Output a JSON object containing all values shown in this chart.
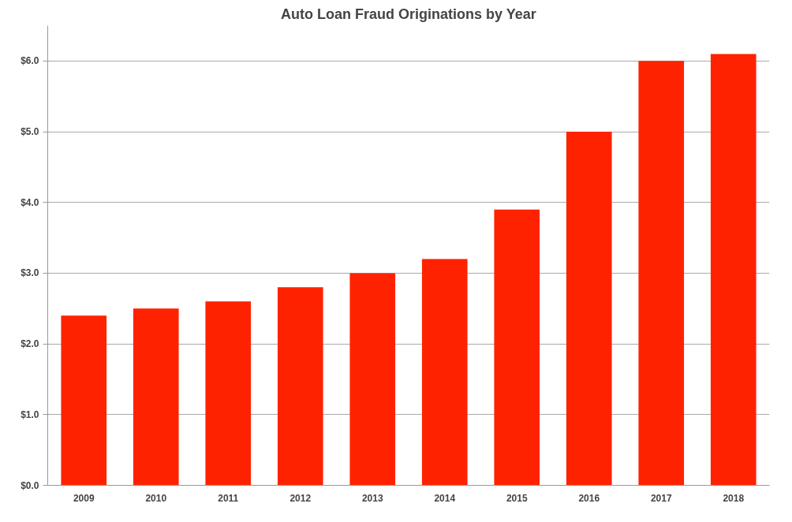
{
  "chart_data": {
    "type": "bar",
    "title": "Auto Loan Fraud Originations by Year",
    "categories": [
      "2009",
      "2010",
      "2011",
      "2012",
      "2013",
      "2014",
      "2015",
      "2016",
      "2017",
      "2018"
    ],
    "values": [
      2.4,
      2.5,
      2.6,
      2.8,
      3.0,
      3.2,
      3.9,
      5.0,
      6.0,
      6.1
    ],
    "color": "#ff2200",
    "ylim": [
      0,
      6.5
    ],
    "yticks": [
      {
        "value": 0,
        "label": "$0.0"
      },
      {
        "value": 1,
        "label": "$1.0"
      },
      {
        "value": 2,
        "label": "$2.0"
      },
      {
        "value": 3,
        "label": "$3.0"
      },
      {
        "value": 4,
        "label": "$4.0"
      },
      {
        "value": 5,
        "label": "$5.0"
      },
      {
        "value": 6,
        "label": "$6.0"
      }
    ],
    "grid": "y"
  }
}
